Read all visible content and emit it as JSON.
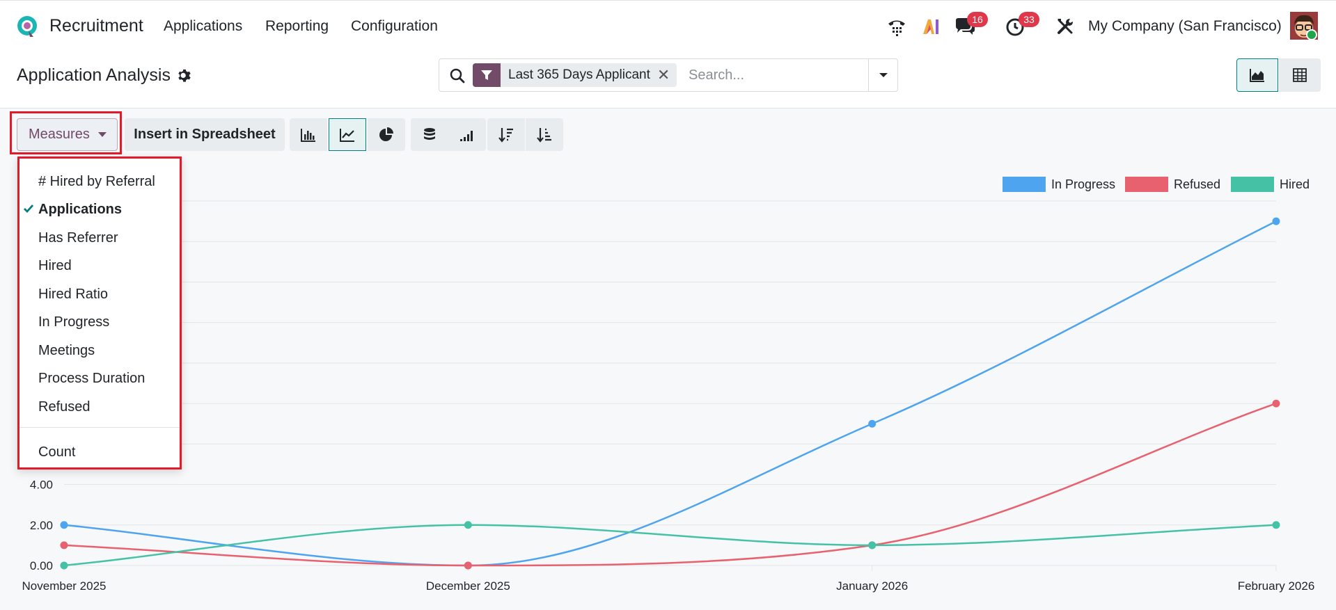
{
  "navbar": {
    "app_name": "Recruitment",
    "menu": [
      "Applications",
      "Reporting",
      "Configuration"
    ],
    "icons": [
      "phone-icon",
      "ai-icon",
      "chat-icon",
      "activity-clock-icon",
      "tools-icon"
    ],
    "chat_badge": "16",
    "activity_badge": "33",
    "company": "My Company (San Francisco)"
  },
  "control_panel": {
    "title": "Application Analysis",
    "search": {
      "facet_label": "Last 365 Days Applicant",
      "placeholder": "Search..."
    }
  },
  "toolbar": {
    "measures_label": "Measures",
    "spreadsheet_label": "Insert in Spreadsheet"
  },
  "measures_menu": {
    "items": [
      {
        "label": "# Hired by Referral",
        "checked": false
      },
      {
        "label": "Applications",
        "checked": true
      },
      {
        "label": "Has Referrer",
        "checked": false
      },
      {
        "label": "Hired",
        "checked": false
      },
      {
        "label": "Hired Ratio",
        "checked": false
      },
      {
        "label": "In Progress",
        "checked": false
      },
      {
        "label": "Meetings",
        "checked": false
      },
      {
        "label": "Process Duration",
        "checked": false
      },
      {
        "label": "Refused",
        "checked": false
      }
    ],
    "count_label": "Count"
  },
  "colors": {
    "accent": "#714b67",
    "teal": "#017e84",
    "in_progress": "#4ea4ee",
    "refused": "#e8616f",
    "hired": "#45c1a6"
  },
  "chart_data": {
    "type": "line",
    "categories": [
      "November 2025",
      "December 2025",
      "January 2026",
      "February 2026"
    ],
    "series": [
      {
        "name": "In Progress",
        "values": [
          2,
          0,
          7,
          17
        ]
      },
      {
        "name": "Refused",
        "values": [
          1,
          0,
          1,
          8
        ]
      },
      {
        "name": "Hired",
        "values": [
          0,
          2,
          1,
          2
        ]
      }
    ],
    "yticks": [
      "0.00",
      "2.00",
      "4.00"
    ],
    "ylim": [
      0,
      18
    ],
    "legend": "top-right",
    "grid": true
  }
}
